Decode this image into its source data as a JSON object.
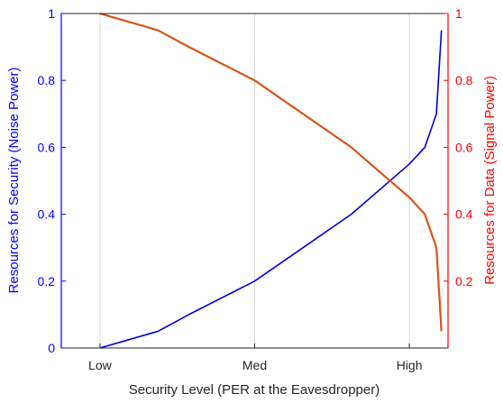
{
  "colors": {
    "left_axis": "#0000ff",
    "right_axis": "#ff0000",
    "noise_series": "#0000dd",
    "signal_series": "#d95319",
    "grid": "#d9d9d9",
    "frame": "#262626"
  },
  "chart_data": {
    "type": "line",
    "xlabel": "Security Level (PER at the Eavesdropper)",
    "ylabel_left": "Resources for Security (Noise Power)",
    "ylabel_right": "Resources for Data (Signal Power)",
    "x_tick_labels": [
      "Low",
      "Med",
      "High"
    ],
    "x_tick_positions": [
      0.1,
      0.5,
      0.9
    ],
    "xlim": [
      0,
      1
    ],
    "ylim_left": [
      0,
      1
    ],
    "ylim_right": [
      0,
      1
    ],
    "y_ticks_left": [
      "0",
      "0.2",
      "0.4",
      "0.6",
      "0.8",
      "1"
    ],
    "y_ticks_right": [
      "0.2",
      "0.4",
      "0.6",
      "0.8",
      "1"
    ],
    "grid": "vertical",
    "series": [
      {
        "axis": "left",
        "x": [
          0.1,
          0.25,
          0.33,
          0.5,
          0.75,
          0.9,
          0.94,
          0.97,
          0.983
        ],
        "y": [
          0.0,
          0.05,
          0.1,
          0.2,
          0.4,
          0.55,
          0.6,
          0.7,
          0.95
        ]
      },
      {
        "axis": "right",
        "x": [
          0.1,
          0.25,
          0.33,
          0.5,
          0.75,
          0.9,
          0.94,
          0.97,
          0.983
        ],
        "y": [
          1.0,
          0.95,
          0.9,
          0.8,
          0.6,
          0.45,
          0.4,
          0.3,
          0.05
        ]
      }
    ]
  }
}
